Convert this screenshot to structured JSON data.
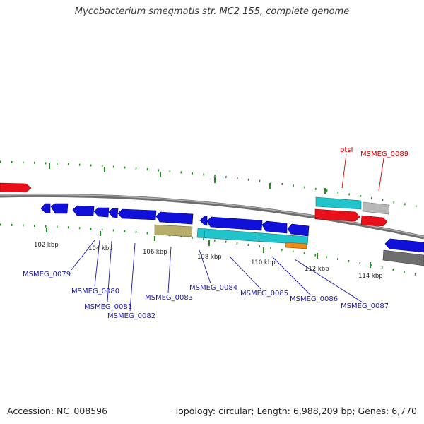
{
  "title": "Mycobacterium smegmatis str. MC2 155, complete genome",
  "footer": {
    "accession": "Accession: NC_008596",
    "summary": "Topology: circular; Length: 6,988,209 bp; Genes: 6,770"
  },
  "colors": {
    "backbone": "#8a8a8a",
    "cds_forward": "#e8101a",
    "cds_reverse": "#1010d8",
    "rna": "#22c4cc",
    "pseudogene": "#b8b8b8",
    "other_feature": "#b6ad6a",
    "repeat": "#f08a10",
    "gene_label_reverse": "#1a1aa8",
    "gene_label_forward": "#cc0000",
    "tick": "#1e8c1e"
  },
  "kbp_ticks": [
    "102 kbp",
    "104 kbp",
    "106 kbp",
    "108 kbp",
    "110 kbp",
    "112 kbp",
    "114 kbp"
  ],
  "gene_labels_reverse": [
    "MSMEG_0079",
    "MSMEG_0080",
    "MSMEG_0081",
    "MSMEG_0082",
    "MSMEG_0083",
    "MSMEG_0084",
    "MSMEG_0085",
    "MSMEG_0086",
    "MSMEG_0087"
  ],
  "gene_labels_forward": [
    "ptsI",
    "MSMEG_0089"
  ]
}
